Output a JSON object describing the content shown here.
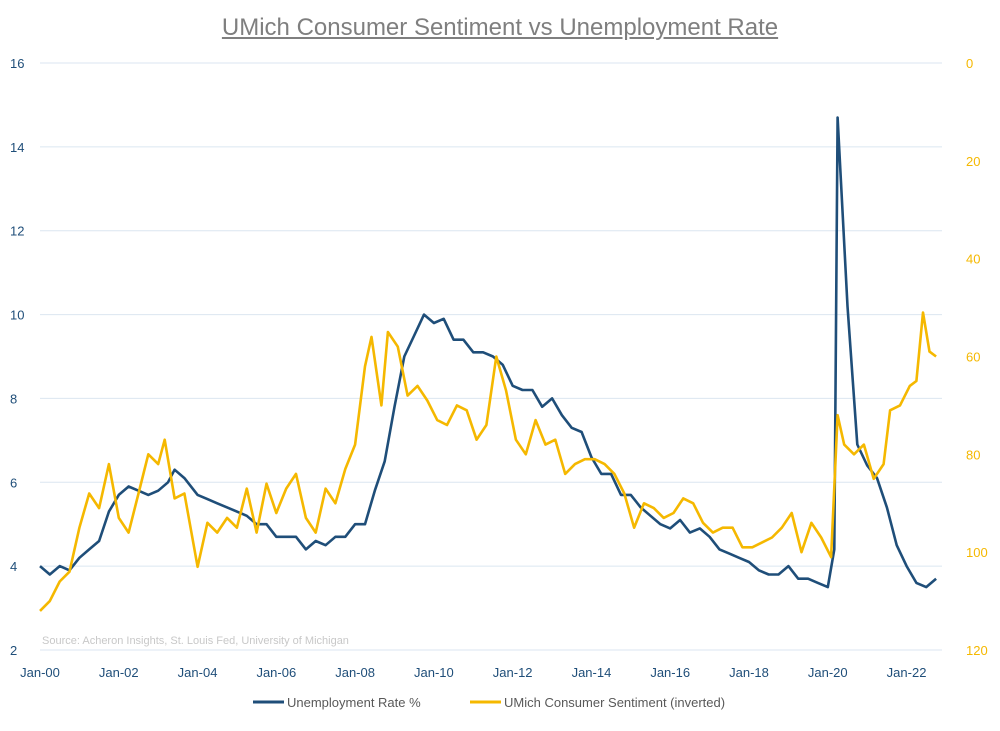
{
  "chart_data": {
    "type": "line",
    "title": "UMich Consumer Sentiment vs Unemployment Rate",
    "source": "Source: Acheron Insights, St. Louis Fed, University of Michigan",
    "x_ticks": [
      "Jan-00",
      "Jan-02",
      "Jan-04",
      "Jan-06",
      "Jan-08",
      "Jan-10",
      "Jan-12",
      "Jan-14",
      "Jan-16",
      "Jan-18",
      "Jan-20",
      "Jan-22"
    ],
    "y_left": {
      "ticks": [
        2,
        4,
        6,
        8,
        10,
        12,
        14,
        16
      ],
      "range": [
        2,
        16
      ]
    },
    "y_right": {
      "ticks": [
        0,
        20,
        40,
        60,
        80,
        100,
        120
      ],
      "range": [
        0,
        120
      ],
      "inverted": true
    },
    "gridlines": "horizontal",
    "legend_position": "bottom",
    "series": [
      {
        "name": "Unemployment Rate %",
        "axis": "left",
        "color": "#1f4e79",
        "x": [
          "2000-01",
          "2000-04",
          "2000-07",
          "2000-10",
          "2001-01",
          "2001-04",
          "2001-07",
          "2001-10",
          "2002-01",
          "2002-04",
          "2002-07",
          "2002-10",
          "2003-01",
          "2003-04",
          "2003-06",
          "2003-09",
          "2004-01",
          "2004-04",
          "2004-07",
          "2004-10",
          "2005-01",
          "2005-04",
          "2005-07",
          "2005-10",
          "2006-01",
          "2006-04",
          "2006-07",
          "2006-10",
          "2007-01",
          "2007-04",
          "2007-07",
          "2007-10",
          "2008-01",
          "2008-04",
          "2008-07",
          "2008-10",
          "2009-01",
          "2009-04",
          "2009-07",
          "2009-10",
          "2010-01",
          "2010-04",
          "2010-07",
          "2010-10",
          "2011-01",
          "2011-04",
          "2011-07",
          "2011-10",
          "2012-01",
          "2012-04",
          "2012-07",
          "2012-10",
          "2013-01",
          "2013-04",
          "2013-07",
          "2013-10",
          "2014-01",
          "2014-04",
          "2014-07",
          "2014-10",
          "2015-01",
          "2015-04",
          "2015-07",
          "2015-10",
          "2016-01",
          "2016-04",
          "2016-07",
          "2016-10",
          "2017-01",
          "2017-04",
          "2017-07",
          "2017-10",
          "2018-01",
          "2018-04",
          "2018-07",
          "2018-10",
          "2019-01",
          "2019-04",
          "2019-07",
          "2019-10",
          "2020-01",
          "2020-03",
          "2020-04",
          "2020-05",
          "2020-07",
          "2020-10",
          "2021-01",
          "2021-04",
          "2021-07",
          "2021-10",
          "2022-01",
          "2022-04",
          "2022-07",
          "2022-10"
        ],
        "values": [
          4.0,
          3.8,
          4.0,
          3.9,
          4.2,
          4.4,
          4.6,
          5.3,
          5.7,
          5.9,
          5.8,
          5.7,
          5.8,
          6.0,
          6.3,
          6.1,
          5.7,
          5.6,
          5.5,
          5.4,
          5.3,
          5.2,
          5.0,
          5.0,
          4.7,
          4.7,
          4.7,
          4.4,
          4.6,
          4.5,
          4.7,
          4.7,
          5.0,
          5.0,
          5.8,
          6.5,
          7.8,
          9.0,
          9.5,
          10.0,
          9.8,
          9.9,
          9.4,
          9.4,
          9.1,
          9.1,
          9.0,
          8.8,
          8.3,
          8.2,
          8.2,
          7.8,
          8.0,
          7.6,
          7.3,
          7.2,
          6.6,
          6.2,
          6.2,
          5.7,
          5.7,
          5.4,
          5.2,
          5.0,
          4.9,
          5.1,
          4.8,
          4.9,
          4.7,
          4.4,
          4.3,
          4.2,
          4.1,
          3.9,
          3.8,
          3.8,
          4.0,
          3.7,
          3.7,
          3.6,
          3.5,
          4.4,
          14.7,
          13.2,
          10.2,
          6.9,
          6.4,
          6.1,
          5.4,
          4.5,
          4.0,
          3.6,
          3.5,
          3.7
        ]
      },
      {
        "name": "UMich Consumer Sentiment (inverted)",
        "axis": "right",
        "color": "#f5b800",
        "x": [
          "2000-01",
          "2000-04",
          "2000-07",
          "2000-10",
          "2001-01",
          "2001-04",
          "2001-07",
          "2001-10",
          "2002-01",
          "2002-04",
          "2002-07",
          "2002-10",
          "2003-01",
          "2003-03",
          "2003-06",
          "2003-09",
          "2004-01",
          "2004-04",
          "2004-07",
          "2004-10",
          "2005-01",
          "2005-04",
          "2005-07",
          "2005-10",
          "2006-01",
          "2006-04",
          "2006-07",
          "2006-10",
          "2007-01",
          "2007-04",
          "2007-07",
          "2007-10",
          "2008-01",
          "2008-04",
          "2008-06",
          "2008-09",
          "2008-11",
          "2009-02",
          "2009-05",
          "2009-08",
          "2009-11",
          "2010-02",
          "2010-05",
          "2010-08",
          "2010-11",
          "2011-02",
          "2011-05",
          "2011-08",
          "2011-11",
          "2012-02",
          "2012-05",
          "2012-08",
          "2012-11",
          "2013-02",
          "2013-05",
          "2013-08",
          "2013-11",
          "2014-02",
          "2014-05",
          "2014-08",
          "2014-11",
          "2015-02",
          "2015-05",
          "2015-08",
          "2015-11",
          "2016-02",
          "2016-05",
          "2016-08",
          "2016-11",
          "2017-02",
          "2017-05",
          "2017-08",
          "2017-11",
          "2018-02",
          "2018-05",
          "2018-08",
          "2018-11",
          "2019-02",
          "2019-05",
          "2019-08",
          "2019-11",
          "2020-02",
          "2020-04",
          "2020-06",
          "2020-09",
          "2020-12",
          "2021-03",
          "2021-06",
          "2021-08",
          "2021-11",
          "2022-02",
          "2022-04",
          "2022-06",
          "2022-08",
          "2022-10"
        ],
        "values": [
          112,
          110,
          106,
          104,
          95,
          88,
          91,
          82,
          93,
          96,
          88,
          80,
          82,
          77,
          89,
          88,
          103,
          94,
          96,
          93,
          95,
          87,
          96,
          86,
          92,
          87,
          84,
          93,
          96,
          87,
          90,
          83,
          78,
          62,
          56,
          70,
          55,
          58,
          68,
          66,
          69,
          73,
          74,
          70,
          71,
          77,
          74,
          60,
          67,
          77,
          80,
          73,
          78,
          77,
          84,
          82,
          81,
          81,
          82,
          84,
          88,
          95,
          90,
          91,
          93,
          92,
          89,
          90,
          94,
          96,
          95,
          95,
          99,
          99,
          98,
          97,
          95,
          92,
          100,
          94,
          97,
          101,
          72,
          78,
          80,
          78,
          85,
          82,
          71,
          70,
          66,
          65,
          51,
          59,
          60
        ]
      }
    ]
  },
  "legend": [
    {
      "label": "Unemployment Rate %",
      "color": "#1f4e79"
    },
    {
      "label": "UMich Consumer Sentiment (inverted)",
      "color": "#f5b800"
    }
  ]
}
